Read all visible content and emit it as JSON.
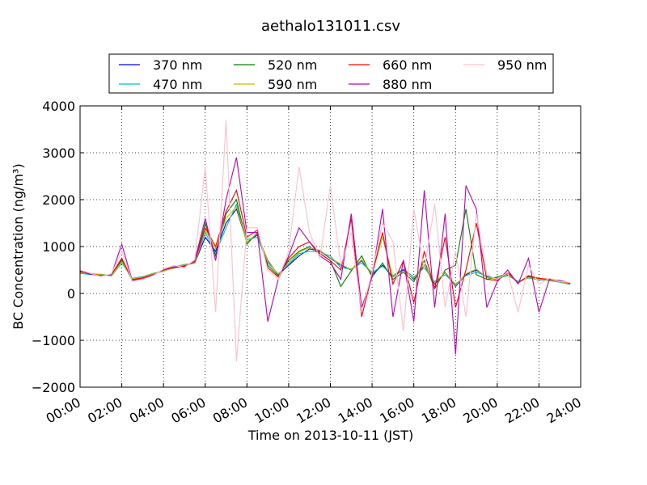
{
  "chart_data": {
    "type": "line",
    "title": "aethalo131011.csv",
    "xlabel": "Time on 2013-10-11 (JST)",
    "ylabel": "BC Concentration (ng/m³)",
    "x": [
      0,
      0.5,
      1,
      1.5,
      2,
      2.5,
      3,
      3.5,
      4,
      4.5,
      5,
      5.5,
      6,
      6.5,
      7,
      7.5,
      8,
      8.5,
      9,
      9.5,
      10,
      10.5,
      11,
      11.5,
      12,
      12.5,
      13,
      13.5,
      14,
      14.5,
      15,
      15.5,
      16,
      16.5,
      17,
      17.5,
      18,
      18.5,
      19,
      19.5,
      20,
      20.5,
      21,
      21.5,
      22,
      22.5,
      23,
      23.5
    ],
    "xlim": [
      0,
      24
    ],
    "xticks": [
      {
        "value": 0,
        "label": "00:00"
      },
      {
        "value": 2,
        "label": "02:00"
      },
      {
        "value": 4,
        "label": "04:00"
      },
      {
        "value": 6,
        "label": "06:00"
      },
      {
        "value": 8,
        "label": "08:00"
      },
      {
        "value": 10,
        "label": "10:00"
      },
      {
        "value": 12,
        "label": "12:00"
      },
      {
        "value": 14,
        "label": "14:00"
      },
      {
        "value": 16,
        "label": "16:00"
      },
      {
        "value": 18,
        "label": "18:00"
      },
      {
        "value": 20,
        "label": "20:00"
      },
      {
        "value": 22,
        "label": "22:00"
      },
      {
        "value": 24,
        "label": "24:00"
      }
    ],
    "ylim": [
      -2000,
      4000
    ],
    "yticks": [
      {
        "value": -2000,
        "label": "−2000"
      },
      {
        "value": -1000,
        "label": "−1000"
      },
      0,
      1000,
      2000,
      3000,
      4000
    ],
    "grid": true,
    "legend": "top",
    "series": [
      {
        "name": "370 nm",
        "color": "#0000ff",
        "values": [
          450,
          420,
          400,
          380,
          700,
          300,
          350,
          420,
          480,
          550,
          600,
          650,
          1200,
          900,
          1500,
          1800,
          1100,
          1250,
          700,
          400,
          600,
          800,
          950,
          900,
          750,
          600,
          500,
          700,
          400,
          600,
          350,
          500,
          300,
          600,
          200,
          450,
          150,
          400,
          500,
          350,
          300,
          400,
          250,
          350,
          300,
          280,
          250,
          200
        ]
      },
      {
        "name": "470 nm",
        "color": "#00bfbf",
        "values": [
          430,
          400,
          410,
          370,
          650,
          320,
          360,
          430,
          470,
          560,
          620,
          640,
          1300,
          850,
          1400,
          1900,
          1150,
          1200,
          650,
          420,
          620,
          850,
          900,
          880,
          800,
          550,
          520,
          650,
          450,
          580,
          380,
          520,
          350,
          550,
          250,
          400,
          200,
          380,
          450,
          370,
          320,
          380,
          260,
          330,
          290,
          270,
          240,
          190
        ]
      },
      {
        "name": "520 nm",
        "color": "#008000",
        "values": [
          460,
          410,
          390,
          390,
          720,
          280,
          340,
          410,
          490,
          540,
          590,
          660,
          1500,
          800,
          1700,
          2000,
          1050,
          1300,
          600,
          380,
          700,
          900,
          1000,
          850,
          700,
          150,
          480,
          800,
          350,
          650,
          300,
          450,
          250,
          700,
          100,
          500,
          600,
          1800,
          400,
          300,
          350,
          420,
          230,
          360,
          310,
          290,
          260,
          210
        ]
      },
      {
        "name": "590 nm",
        "color": "#bfbf00",
        "values": [
          440,
          430,
          400,
          380,
          680,
          310,
          350,
          420,
          480,
          550,
          610,
          650,
          1350,
          950,
          1600,
          1850,
          1100,
          1280,
          680,
          410,
          650,
          880,
          980,
          920,
          760,
          620,
          510,
          720,
          420,
          1200,
          360,
          480,
          320,
          620,
          220,
          460,
          170,
          420,
          520,
          340,
          310,
          410,
          240,
          340,
          300,
          280,
          250,
          200
        ]
      },
      {
        "name": "660 nm",
        "color": "#ff0000",
        "values": [
          470,
          420,
          380,
          400,
          750,
          290,
          330,
          400,
          500,
          560,
          580,
          680,
          1400,
          1000,
          1750,
          2200,
          1200,
          1350,
          550,
          350,
          750,
          1000,
          1100,
          850,
          700,
          500,
          1600,
          -500,
          400,
          1300,
          200,
          700,
          -200,
          900,
          100,
          1200,
          -300,
          500,
          1500,
          300,
          280,
          450,
          220,
          380,
          320,
          300,
          270,
          210
        ]
      },
      {
        "name": "880 nm",
        "color": "#bf00bf",
        "values": [
          480,
          410,
          370,
          400,
          1050,
          270,
          310,
          390,
          510,
          570,
          560,
          700,
          1600,
          700,
          2000,
          2900,
          1300,
          1300,
          -600,
          300,
          800,
          1400,
          1100,
          800,
          650,
          300,
          1700,
          -300,
          350,
          1800,
          -500,
          700,
          -600,
          2200,
          -300,
          1700,
          -1300,
          2300,
          1800,
          -300,
          250,
          500,
          200,
          750,
          -400,
          300,
          280,
          220
        ]
      },
      {
        "name": "950 nm",
        "color": "#ffc0cb",
        "values": [
          500,
          430,
          360,
          420,
          900,
          260,
          300,
          380,
          520,
          600,
          550,
          720,
          2700,
          -400,
          3700,
          -1450,
          1400,
          1400,
          500,
          300,
          900,
          2700,
          1300,
          750,
          2300,
          600,
          1300,
          -400,
          450,
          1500,
          1100,
          -800,
          1800,
          500,
          1900,
          -300,
          900,
          -500,
          1700,
          400,
          300,
          450,
          -400,
          600,
          200,
          320,
          260,
          230
        ]
      }
    ]
  }
}
